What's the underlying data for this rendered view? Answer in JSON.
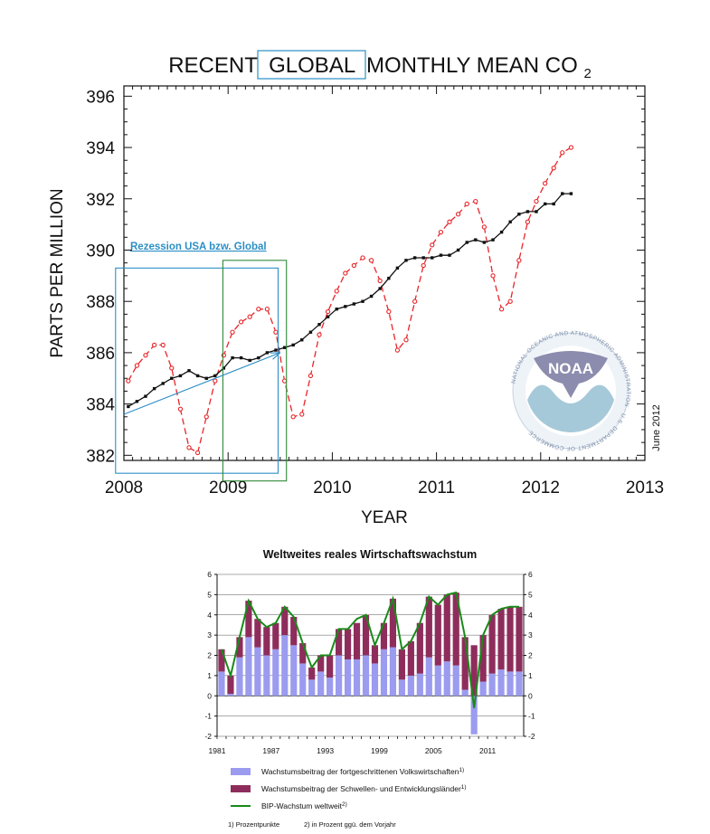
{
  "chart_data": [
    {
      "type": "line",
      "title": {
        "prefix": "RECENT",
        "highlight": "GLOBAL",
        "suffix": "MONTHLY MEAN CO",
        "subscript": "2"
      },
      "xlabel": "YEAR",
      "ylabel": "PARTS PER MILLION",
      "xlim": [
        2008,
        2013
      ],
      "ylim": [
        381.8,
        396.4
      ],
      "xticks": [
        "2008",
        "2009",
        "2010",
        "2011",
        "2012",
        "2013"
      ],
      "yticks": [
        "382",
        "384",
        "386",
        "388",
        "390",
        "392",
        "394",
        "396"
      ],
      "date_note": "June 2012",
      "logo_text": "NOAA",
      "logo_ring_text": "NATIONAL OCEANIC AND ATMOSPHERIC ADMINISTRATION · U.S. DEPARTMENT OF COMMERCE",
      "annotation": "Rezession USA bzw. Global",
      "recession_boxes": [
        {
          "name": "usa-recession",
          "x0": 2007.92,
          "x1": 2009.48,
          "y0": 381.3,
          "y1": 389.3,
          "color": "#2c8fc6"
        },
        {
          "name": "global-recession",
          "x0": 2008.95,
          "x1": 2009.56,
          "y0": 381.0,
          "y1": 389.6,
          "color": "#2f8a3a"
        }
      ],
      "trend_arrow": {
        "from": [
          2008.0,
          383.6
        ],
        "to": [
          2009.5,
          386.0
        ]
      },
      "series": [
        {
          "name": "monthly mean",
          "color": "#e8262a",
          "dash": true,
          "x": [
            2008.042,
            2008.125,
            2008.208,
            2008.292,
            2008.375,
            2008.458,
            2008.542,
            2008.625,
            2008.708,
            2008.792,
            2008.875,
            2008.958,
            2009.042,
            2009.125,
            2009.208,
            2009.292,
            2009.375,
            2009.458,
            2009.542,
            2009.625,
            2009.708,
            2009.792,
            2009.875,
            2009.958,
            2010.042,
            2010.125,
            2010.208,
            2010.292,
            2010.375,
            2010.458,
            2010.542,
            2010.625,
            2010.708,
            2010.792,
            2010.875,
            2010.958,
            2011.042,
            2011.125,
            2011.208,
            2011.292,
            2011.375,
            2011.458,
            2011.542,
            2011.625,
            2011.708,
            2011.792,
            2011.875,
            2011.958,
            2012.042,
            2012.125,
            2012.208,
            2012.292
          ],
          "values": [
            384.9,
            385.5,
            385.9,
            386.3,
            386.3,
            385.4,
            383.8,
            382.3,
            382.1,
            383.5,
            384.9,
            385.9,
            386.8,
            387.2,
            387.4,
            387.7,
            387.7,
            386.8,
            384.9,
            383.5,
            383.6,
            385.1,
            386.7,
            387.6,
            388.4,
            389.1,
            389.4,
            389.7,
            389.6,
            388.8,
            387.6,
            386.1,
            386.5,
            388.0,
            389.4,
            390.2,
            390.7,
            391.1,
            391.4,
            391.8,
            391.9,
            390.9,
            389.0,
            387.7,
            388.0,
            389.6,
            391.1,
            391.9,
            392.6,
            393.2,
            393.8,
            394.0
          ]
        },
        {
          "name": "deseasonalized trend",
          "color": "#111111",
          "dash": false,
          "x": [
            2008.042,
            2008.125,
            2008.208,
            2008.292,
            2008.375,
            2008.458,
            2008.542,
            2008.625,
            2008.708,
            2008.792,
            2008.875,
            2008.958,
            2009.042,
            2009.125,
            2009.208,
            2009.292,
            2009.375,
            2009.458,
            2009.542,
            2009.625,
            2009.708,
            2009.792,
            2009.875,
            2009.958,
            2010.042,
            2010.125,
            2010.208,
            2010.292,
            2010.375,
            2010.458,
            2010.542,
            2010.625,
            2010.708,
            2010.792,
            2010.875,
            2010.958,
            2011.042,
            2011.125,
            2011.208,
            2011.292,
            2011.375,
            2011.458,
            2011.542,
            2011.625,
            2011.708,
            2011.792,
            2011.875,
            2011.958,
            2012.042,
            2012.125,
            2012.208,
            2012.292
          ],
          "values": [
            383.9,
            384.1,
            384.3,
            384.6,
            384.8,
            385.0,
            385.1,
            385.3,
            385.1,
            385.0,
            385.1,
            385.4,
            385.8,
            385.8,
            385.7,
            385.8,
            386.0,
            386.1,
            386.2,
            386.3,
            386.5,
            386.8,
            387.1,
            387.4,
            387.7,
            387.8,
            387.9,
            388.0,
            388.2,
            388.5,
            388.9,
            389.3,
            389.6,
            389.7,
            389.7,
            389.7,
            389.8,
            389.8,
            390.0,
            390.3,
            390.4,
            390.3,
            390.4,
            390.7,
            391.1,
            391.4,
            391.5,
            391.5,
            391.8,
            391.8,
            392.2,
            392.2
          ]
        }
      ]
    },
    {
      "type": "bar",
      "title": "Weltweites reales Wirtschaftswachstum",
      "ylim": [
        -2,
        6
      ],
      "yticks": [
        "-2",
        "-1",
        "0",
        "1",
        "2",
        "3",
        "4",
        "5",
        "6"
      ],
      "xticks": [
        "1981",
        "1987",
        "1993",
        "1999",
        "2005",
        "2011"
      ],
      "year_range": [
        1981,
        2014
      ],
      "colors": {
        "advanced": "#9b9bf0",
        "emerging": "#8e2d5c",
        "world": "#1a8a1a"
      },
      "years": [
        1981,
        1982,
        1983,
        1984,
        1985,
        1986,
        1987,
        1988,
        1989,
        1990,
        1991,
        1992,
        1993,
        1994,
        1995,
        1996,
        1997,
        1998,
        1999,
        2000,
        2001,
        2002,
        2003,
        2004,
        2005,
        2006,
        2007,
        2008,
        2009,
        2010,
        2011,
        2012,
        2013,
        2014
      ],
      "series": [
        {
          "name": "advanced",
          "values": [
            1.2,
            0.1,
            1.9,
            2.9,
            2.4,
            2.0,
            2.3,
            3.0,
            2.5,
            1.6,
            0.8,
            1.2,
            0.9,
            2.0,
            1.8,
            1.8,
            2.0,
            1.6,
            2.3,
            2.4,
            0.8,
            1.0,
            1.1,
            1.9,
            1.5,
            1.7,
            1.5,
            0.3,
            -1.9,
            0.7,
            1.1,
            1.3,
            1.2,
            1.2
          ]
        },
        {
          "name": "emerging",
          "values": [
            1.1,
            0.9,
            1.0,
            1.8,
            1.4,
            1.4,
            1.3,
            1.4,
            1.4,
            1.0,
            0.6,
            0.8,
            1.1,
            1.3,
            1.5,
            1.8,
            2.0,
            0.9,
            1.3,
            2.4,
            1.5,
            1.7,
            2.5,
            3.0,
            3.0,
            3.3,
            3.6,
            2.6,
            2.5,
            2.3,
            2.9,
            3.0,
            3.2,
            3.2
          ]
        },
        {
          "name": "world",
          "values": [
            2.3,
            1.0,
            2.9,
            4.7,
            3.8,
            3.4,
            3.6,
            4.4,
            3.9,
            2.6,
            1.4,
            2.0,
            2.0,
            3.3,
            3.3,
            3.8,
            4.0,
            2.5,
            3.6,
            4.8,
            2.3,
            2.7,
            3.6,
            4.9,
            4.5,
            5.0,
            5.1,
            2.9,
            -0.6,
            3.0,
            4.0,
            4.3,
            4.4,
            4.4
          ]
        }
      ],
      "legend": [
        {
          "key": "advanced",
          "label": "Wachstumsbeitrag der fortgeschrittenen Volkswirtschaften",
          "sup": "1)"
        },
        {
          "key": "emerging",
          "label": "Wachstumsbeitrag der Schwellen- und Entwicklungsländer",
          "sup": "1)"
        },
        {
          "key": "world",
          "label": "BIP-Wachstum weltweit",
          "sup": "2)"
        }
      ],
      "footnote_1": "1) Prozentpunkte",
      "footnote_2": "2) in Prozent ggü. dem Vorjahr"
    }
  ]
}
